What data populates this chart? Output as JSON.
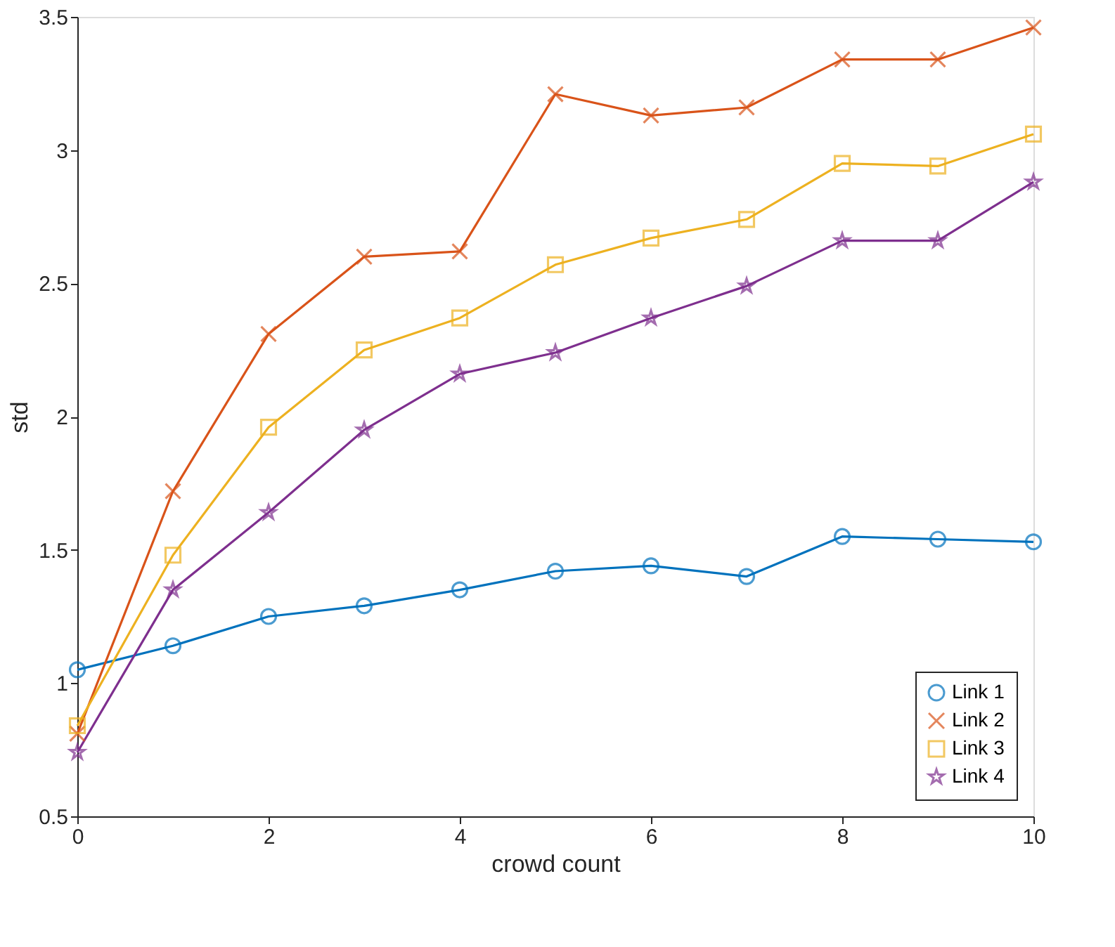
{
  "chart_data": {
    "type": "line",
    "xlabel": "crowd count",
    "ylabel": "std",
    "x": [
      0,
      1,
      2,
      3,
      4,
      5,
      6,
      7,
      8,
      9,
      10
    ],
    "series": [
      {
        "name": "Link 1",
        "color": "#0072bd",
        "marker": "circle",
        "values": [
          1.05,
          1.14,
          1.25,
          1.29,
          1.35,
          1.42,
          1.44,
          1.4,
          1.55,
          1.54,
          1.53
        ]
      },
      {
        "name": "Link 2",
        "color": "#d95319",
        "marker": "cross",
        "values": [
          0.81,
          1.72,
          2.31,
          2.6,
          2.62,
          3.21,
          3.13,
          3.16,
          3.34,
          3.34,
          3.46
        ]
      },
      {
        "name": "Link 3",
        "color": "#edb120",
        "marker": "square",
        "values": [
          0.84,
          1.48,
          1.96,
          2.25,
          2.37,
          2.57,
          2.67,
          2.74,
          2.95,
          2.94,
          3.06
        ]
      },
      {
        "name": "Link 4",
        "color": "#7e2f8e",
        "marker": "star",
        "values": [
          0.74,
          1.35,
          1.64,
          1.95,
          2.16,
          2.24,
          2.37,
          2.49,
          2.66,
          2.66,
          2.88
        ]
      }
    ],
    "xlim": [
      0,
      10
    ],
    "xticks": [
      0,
      2,
      4,
      6,
      8,
      10
    ],
    "ylim": [
      0.5,
      3.5
    ],
    "yticks": [
      0.5,
      1,
      1.5,
      2,
      2.5,
      3,
      3.5
    ],
    "grid": false,
    "legend": "bottom right",
    "line_style": "solid"
  }
}
